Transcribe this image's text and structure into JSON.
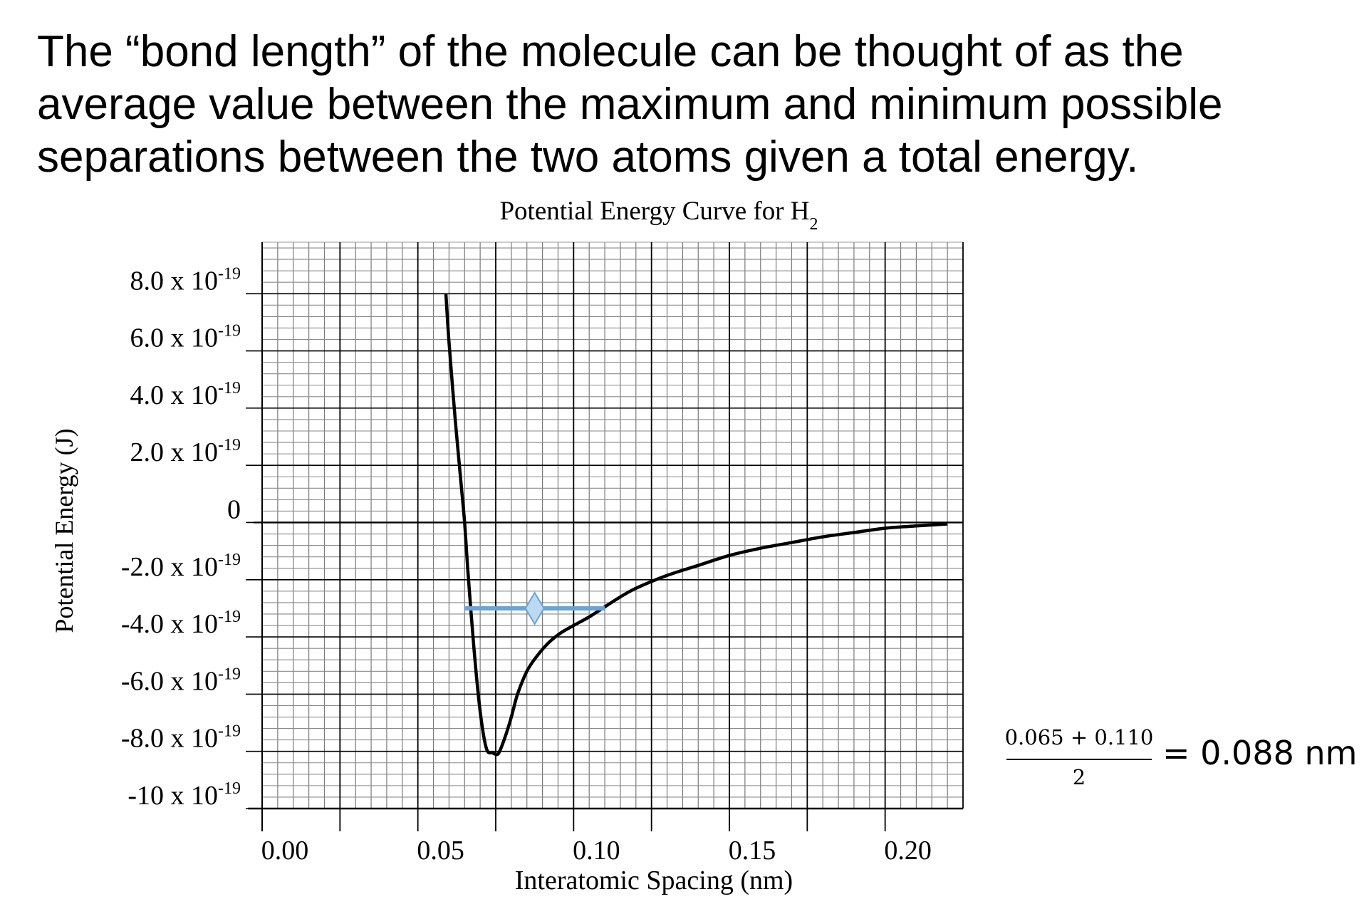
{
  "paragraph": {
    "lines": [
      "The “bond length” of the molecule can be thought of as the",
      "average value between the maximum and minimum possible",
      "separations between the two atoms given a total energy."
    ]
  },
  "chart_data": {
    "type": "line",
    "title": "Potential Energy Curve for H",
    "title_subscript": "2",
    "xlabel": "Interatomic Spacing (nm)",
    "ylabel": "Potential Energy (J)",
    "xlim": [
      0.0,
      0.225
    ],
    "ylim": [
      -1e-18,
      9.8e-19
    ],
    "grid": true,
    "x_ticks": [
      {
        "value": 0.0,
        "label": "0.00"
      },
      {
        "value": 0.05,
        "label": "0.05"
      },
      {
        "value": 0.1,
        "label": "0.10"
      },
      {
        "value": 0.15,
        "label": "0.15"
      },
      {
        "value": 0.2,
        "label": "0.20"
      }
    ],
    "y_ticks": [
      {
        "value": 8e-19,
        "mantissa": "8.0 x 10",
        "exp": "-19"
      },
      {
        "value": 6e-19,
        "mantissa": "6.0 x 10",
        "exp": "-19"
      },
      {
        "value": 4e-19,
        "mantissa": "4.0 x 10",
        "exp": "-19"
      },
      {
        "value": 2e-19,
        "mantissa": "2.0 x 10",
        "exp": "-19"
      },
      {
        "value": 0,
        "mantissa": "0",
        "exp": ""
      },
      {
        "value": -2e-19,
        "mantissa": "-2.0 x 10",
        "exp": "-19"
      },
      {
        "value": -4e-19,
        "mantissa": "-4.0 x 10",
        "exp": "-19"
      },
      {
        "value": -6e-19,
        "mantissa": "-6.0 x 10",
        "exp": "-19"
      },
      {
        "value": -8e-19,
        "mantissa": "-8.0 x 10",
        "exp": "-19"
      },
      {
        "value": -1e-18,
        "mantissa": "-10 x 10",
        "exp": "-19"
      }
    ],
    "series": [
      {
        "color": "#000000",
        "x": [
          0.059,
          0.06,
          0.062,
          0.064,
          0.065,
          0.066,
          0.068,
          0.07,
          0.072,
          0.074,
          0.075,
          0.076,
          0.078,
          0.08,
          0.082,
          0.085,
          0.088,
          0.092,
          0.096,
          0.1,
          0.105,
          0.11,
          0.115,
          0.12,
          0.13,
          0.14,
          0.15,
          0.16,
          0.17,
          0.18,
          0.19,
          0.2,
          0.21,
          0.22
        ],
        "y": [
          8e-19,
          6.3e-19,
          3.6e-19,
          1.2e-19,
          0.0,
          -1.6e-19,
          -4.4e-19,
          -6.6e-19,
          -7.9e-19,
          -8.05e-19,
          -8.1e-19,
          -8.05e-19,
          -7.5e-19,
          -6.8e-19,
          -6e-19,
          -5.2e-19,
          -4.7e-19,
          -4.2e-19,
          -3.85e-19,
          -3.6e-19,
          -3.3e-19,
          -2.95e-19,
          -2.6e-19,
          -2.3e-19,
          -1.85e-19,
          -1.5e-19,
          -1.15e-19,
          -9e-20,
          -7e-20,
          -5e-20,
          -3.5e-20,
          -2e-20,
          -1.2e-20,
          -5e-21
        ]
      }
    ],
    "annotation": {
      "type": "horizontal-segment",
      "y": -3e-19,
      "x_start": 0.065,
      "x_end": 0.11,
      "midpoint": 0.0875,
      "color": "#6aa3d8",
      "marker_fill": "#bcd9f4"
    }
  },
  "equation": {
    "numerator": "0.065 + 0.110",
    "denominator": "2",
    "result": "= 0.088 nm"
  }
}
